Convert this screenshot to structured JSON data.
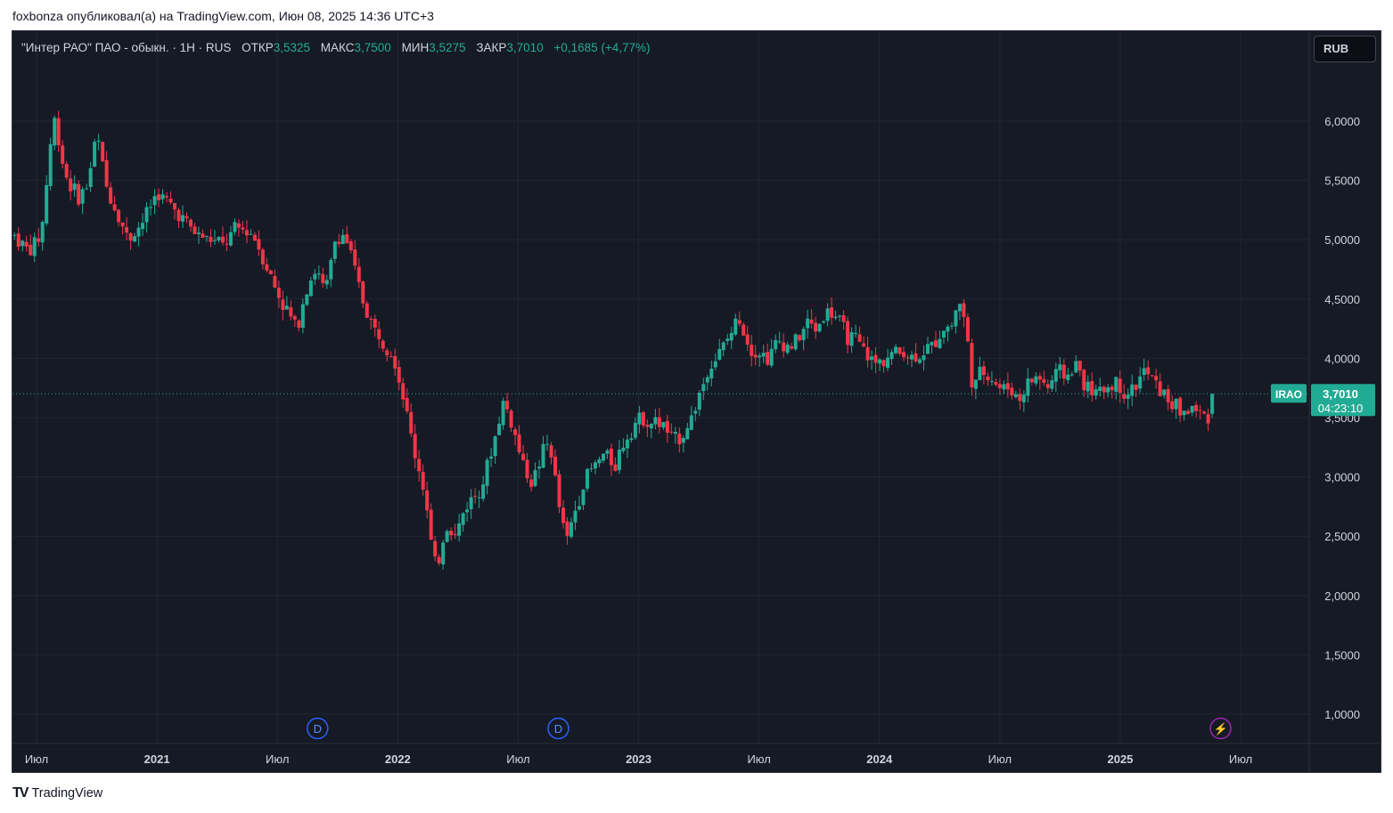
{
  "publication": {
    "text": "foxbonza опубликовал(а) на TradingView.com, Июн 08, 2025 14:36 UTC+3"
  },
  "legend": {
    "symbol": "\"Интер РАО\" ПАО - обыкн. · 1H · RUS",
    "open_label": "ОТКР",
    "open": "3,5325",
    "high_label": "МАКС",
    "high": "3,7500",
    "low_label": "МИН",
    "low": "3,5275",
    "close_label": "ЗАКР",
    "close": "3,7010",
    "change": "+0,1685 (+4,77%)"
  },
  "currency_button": "RUB",
  "price_tag": {
    "symbol": "IRAO",
    "price": "3,7010",
    "countdown": "04:23:10"
  },
  "event_markers": [
    {
      "label": "D",
      "type": "dividend",
      "x_time": 2021.6667
    },
    {
      "label": "D",
      "type": "dividend",
      "x_time": 2022.6667
    },
    {
      "label": "⚡",
      "type": "event",
      "x_time": 2025.4167
    }
  ],
  "colors": {
    "up": "#22ab94",
    "down": "#f23645",
    "background": "#161a25",
    "grid": "#232631",
    "axis_text": "#d1d4dc",
    "marker_blue": "#2962ff",
    "marker_purple": "#9c27b0"
  },
  "footer": {
    "logo_text": "TradingView"
  },
  "chart_data": {
    "type": "candlestick",
    "title": "\"Интер РАО\" ПАО - обыкн. · 1H · RUS",
    "ylim": [
      0.75,
      6.6
    ],
    "xlim": [
      2020.4,
      2025.67
    ],
    "y_ticks": [
      "1,0000",
      "1,5000",
      "2,0000",
      "2,5000",
      "3,0000",
      "3,5000",
      "4,0000",
      "4,5000",
      "5,0000",
      "5,5000",
      "6,0000"
    ],
    "y_tick_values": [
      1.0,
      1.5,
      2.0,
      2.5,
      3.0,
      3.5,
      4.0,
      4.5,
      5.0,
      5.5,
      6.0
    ],
    "x_ticks": [
      {
        "label": "Июл",
        "t": 2020.5,
        "bold": false
      },
      {
        "label": "2021",
        "t": 2021.0,
        "bold": true
      },
      {
        "label": "Июл",
        "t": 2021.5,
        "bold": false
      },
      {
        "label": "2022",
        "t": 2022.0,
        "bold": true
      },
      {
        "label": "Июл",
        "t": 2022.5,
        "bold": false
      },
      {
        "label": "2023",
        "t": 2023.0,
        "bold": true
      },
      {
        "label": "Июл",
        "t": 2023.5,
        "bold": false
      },
      {
        "label": "2024",
        "t": 2024.0,
        "bold": true
      },
      {
        "label": "Июл",
        "t": 2024.5,
        "bold": false
      },
      {
        "label": "2025",
        "t": 2025.0,
        "bold": true
      },
      {
        "label": "Июл",
        "t": 2025.5,
        "bold": false
      }
    ],
    "current_price": 3.701,
    "trend": [
      [
        2020.4,
        5.05
      ],
      [
        2020.47,
        4.9
      ],
      [
        2020.52,
        5.05
      ],
      [
        2020.57,
        6.05
      ],
      [
        2020.62,
        5.55
      ],
      [
        2020.67,
        5.35
      ],
      [
        2020.71,
        5.45
      ],
      [
        2020.75,
        5.9
      ],
      [
        2020.79,
        5.45
      ],
      [
        2020.84,
        5.2
      ],
      [
        2020.88,
        5.0
      ],
      [
        2020.94,
        5.15
      ],
      [
        2021.0,
        5.4
      ],
      [
        2021.05,
        5.3
      ],
      [
        2021.1,
        5.2
      ],
      [
        2021.16,
        5.05
      ],
      [
        2021.22,
        5.0
      ],
      [
        2021.28,
        4.95
      ],
      [
        2021.33,
        5.1
      ],
      [
        2021.4,
        5.05
      ],
      [
        2021.45,
        4.8
      ],
      [
        2021.5,
        4.55
      ],
      [
        2021.54,
        4.4
      ],
      [
        2021.58,
        4.25
      ],
      [
        2021.62,
        4.6
      ],
      [
        2021.66,
        4.75
      ],
      [
        2021.7,
        4.55
      ],
      [
        2021.74,
        5.0
      ],
      [
        2021.78,
        5.05
      ],
      [
        2021.82,
        4.75
      ],
      [
        2021.86,
        4.45
      ],
      [
        2021.9,
        4.25
      ],
      [
        2021.94,
        4.15
      ],
      [
        2021.98,
        4.05
      ],
      [
        2022.02,
        3.7
      ],
      [
        2022.07,
        3.2
      ],
      [
        2022.11,
        2.9
      ],
      [
        2022.14,
        2.4
      ],
      [
        2022.16,
        2.2
      ],
      [
        2022.2,
        2.6
      ],
      [
        2022.24,
        2.5
      ],
      [
        2022.28,
        2.75
      ],
      [
        2022.32,
        2.85
      ],
      [
        2022.36,
        3.0
      ],
      [
        2022.4,
        3.3
      ],
      [
        2022.44,
        3.65
      ],
      [
        2022.48,
        3.4
      ],
      [
        2022.52,
        3.1
      ],
      [
        2022.56,
        2.95
      ],
      [
        2022.6,
        3.2
      ],
      [
        2022.63,
        3.3
      ],
      [
        2022.67,
        2.75
      ],
      [
        2022.7,
        2.45
      ],
      [
        2022.74,
        2.75
      ],
      [
        2022.78,
        3.0
      ],
      [
        2022.82,
        3.1
      ],
      [
        2022.86,
        3.2
      ],
      [
        2022.9,
        3.1
      ],
      [
        2022.94,
        3.3
      ],
      [
        2022.98,
        3.45
      ],
      [
        2023.02,
        3.5
      ],
      [
        2023.06,
        3.45
      ],
      [
        2023.1,
        3.45
      ],
      [
        2023.14,
        3.3
      ],
      [
        2023.18,
        3.35
      ],
      [
        2023.22,
        3.5
      ],
      [
        2023.26,
        3.75
      ],
      [
        2023.3,
        3.95
      ],
      [
        2023.34,
        4.05
      ],
      [
        2023.38,
        4.2
      ],
      [
        2023.42,
        4.35
      ],
      [
        2023.46,
        4.1
      ],
      [
        2023.5,
        4.05
      ],
      [
        2023.54,
        4.0
      ],
      [
        2023.58,
        4.15
      ],
      [
        2023.62,
        4.1
      ],
      [
        2023.66,
        4.15
      ],
      [
        2023.7,
        4.3
      ],
      [
        2023.74,
        4.25
      ],
      [
        2023.78,
        4.4
      ],
      [
        2023.82,
        4.35
      ],
      [
        2023.86,
        4.2
      ],
      [
        2023.9,
        4.15
      ],
      [
        2023.94,
        4.05
      ],
      [
        2023.98,
        3.95
      ],
      [
        2024.02,
        4.0
      ],
      [
        2024.06,
        4.05
      ],
      [
        2024.1,
        4.05
      ],
      [
        2024.14,
        4.0
      ],
      [
        2024.18,
        4.05
      ],
      [
        2024.22,
        4.1
      ],
      [
        2024.26,
        4.25
      ],
      [
        2024.3,
        4.28
      ],
      [
        2024.33,
        4.5
      ],
      [
        2024.36,
        4.25
      ],
      [
        2024.39,
        3.7
      ],
      [
        2024.42,
        3.9
      ],
      [
        2024.46,
        3.85
      ],
      [
        2024.5,
        3.75
      ],
      [
        2024.54,
        3.75
      ],
      [
        2024.58,
        3.65
      ],
      [
        2024.62,
        3.8
      ],
      [
        2024.66,
        3.85
      ],
      [
        2024.7,
        3.75
      ],
      [
        2024.74,
        3.9
      ],
      [
        2024.78,
        3.85
      ],
      [
        2024.82,
        3.95
      ],
      [
        2024.86,
        3.75
      ],
      [
        2024.9,
        3.7
      ],
      [
        2024.94,
        3.75
      ],
      [
        2024.98,
        3.8
      ],
      [
        2025.02,
        3.7
      ],
      [
        2025.06,
        3.75
      ],
      [
        2025.1,
        3.9
      ],
      [
        2025.14,
        3.8
      ],
      [
        2025.18,
        3.7
      ],
      [
        2025.22,
        3.6
      ],
      [
        2025.26,
        3.55
      ],
      [
        2025.3,
        3.58
      ],
      [
        2025.34,
        3.52
      ],
      [
        2025.37,
        3.53
      ],
      [
        2025.39,
        3.7
      ]
    ]
  }
}
